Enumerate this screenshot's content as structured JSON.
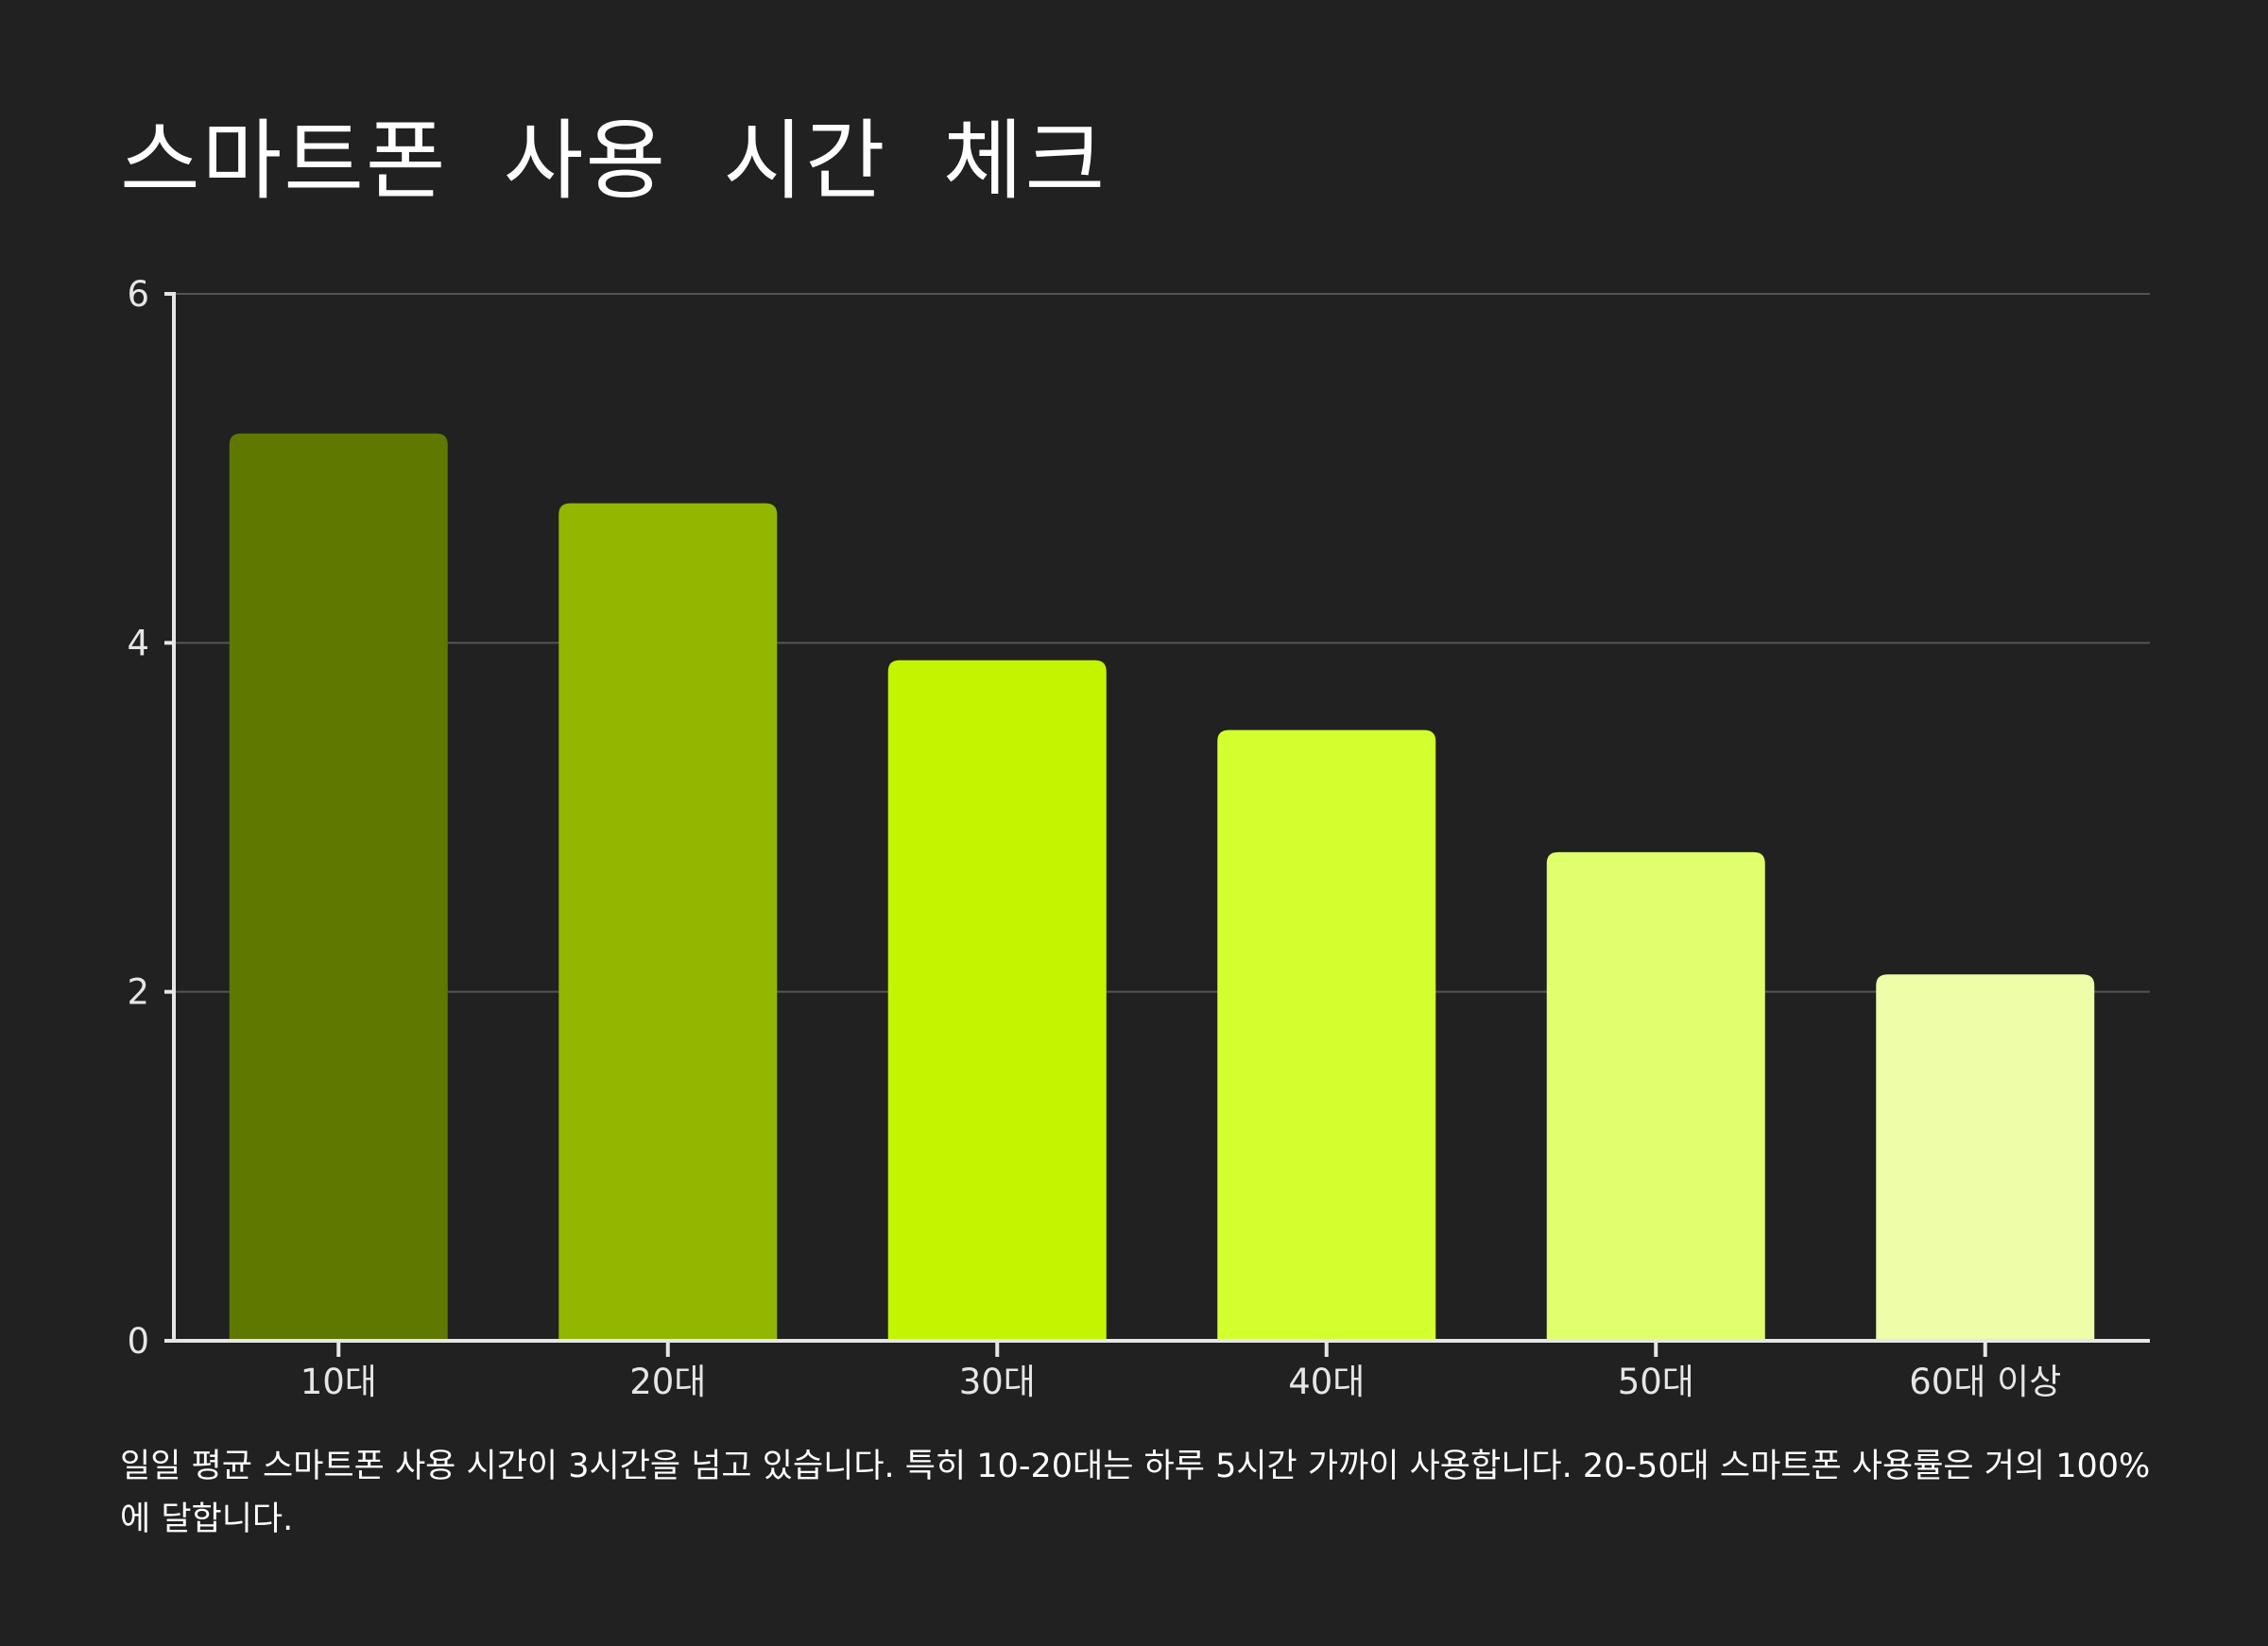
{
  "title": "스마트폰 사용 시간 체크",
  "caption": "일일 평균 스마트폰 사용 시간이 3시간을 넘고 있습니다. 특히 10-20대는 하루 5시간 가까이 사용합니다. 20-50대 스마트폰 사용률은 거의 100%에 달합니다.",
  "chart_data": {
    "type": "bar",
    "title": "스마트폰 사용 시간 체크",
    "xlabel": "",
    "ylabel": "",
    "categories": [
      "10대",
      "20대",
      "30대",
      "40대",
      "50대",
      "60대 이상"
    ],
    "values": [
      5.2,
      4.8,
      3.9,
      3.5,
      2.8,
      2.1
    ],
    "bar_colors": [
      "#5f7800",
      "#93b700",
      "#c3f500",
      "#d4ff2e",
      "#e1ff6c",
      "#eefea8"
    ],
    "ylim": [
      0,
      6
    ],
    "yticks": [
      "0",
      "2",
      "4",
      "6"
    ],
    "grid": true,
    "legend": "none"
  },
  "colors": {
    "background": "#212121",
    "axis": "#e6e6e6",
    "grid": "#555555",
    "text": "#ffffff"
  }
}
